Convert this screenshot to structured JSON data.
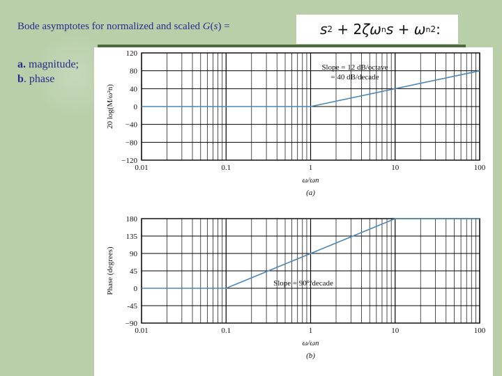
{
  "slide": {
    "title_prefix": "Bode asymptotes for normalized and scaled ",
    "title_fn": "G",
    "title_open": "(",
    "title_var": "s",
    "title_close": ") =",
    "formula": {
      "s": "s",
      "s_exp": "2",
      "plus1": "+ 2",
      "zeta": "ζ",
      "omega": "ω",
      "n_sub": "n",
      "s2": "s",
      "plus2": "+",
      "omega2": "ω",
      "n_sub2": "n",
      "exp2": "2",
      "colon": ":"
    },
    "legend_a": "a.",
    "legend_a_text": " magnitude;",
    "legend_b": "b",
    "legend_b_text": ". phase"
  },
  "colors": {
    "background": "#b9cfaa",
    "title_text": "#2a2a8c",
    "curve": "#4a86b8",
    "grid": "#000000"
  },
  "chart_data": [
    {
      "type": "line",
      "panel": "a",
      "xscale": "log",
      "xlim": [
        0.01,
        100
      ],
      "ylim": [
        -120,
        120
      ],
      "x_ticks": [
        0.01,
        0.1,
        1,
        10,
        100
      ],
      "x_tick_labels": [
        "0.01",
        "0.1",
        "1",
        "10",
        "100"
      ],
      "y_ticks": [
        120,
        80,
        40,
        0,
        -40,
        -80,
        -120
      ],
      "y_tick_labels": [
        "120",
        "80",
        "40",
        "0",
        "−40",
        "−80",
        "−120"
      ],
      "ylabel": "20 log(M/ω²n)",
      "xlabel": "ω/ωn",
      "caption": "(a)",
      "grid": true,
      "series": [
        {
          "x": [
            0.01,
            1,
            100
          ],
          "y": [
            0,
            0,
            80
          ]
        }
      ],
      "annotations": [
        "Slope = 12 dB/octave",
        "= 40 dB/decade"
      ]
    },
    {
      "type": "line",
      "panel": "b",
      "xscale": "log",
      "xlim": [
        0.01,
        100
      ],
      "ylim": [
        -90,
        180
      ],
      "x_ticks": [
        0.01,
        0.1,
        1,
        10,
        100
      ],
      "x_tick_labels": [
        "0.01",
        "0.1",
        "1",
        "10",
        "100"
      ],
      "y_ticks": [
        180,
        135,
        90,
        45,
        0,
        -45,
        -90
      ],
      "y_tick_labels": [
        "180",
        "135",
        "90",
        "45",
        "0",
        "-45",
        "−90"
      ],
      "ylabel": "Phase (degrees)",
      "xlabel": "ω/ωn",
      "caption": "(b)",
      "grid": true,
      "series": [
        {
          "x": [
            0.01,
            0.1,
            10,
            100
          ],
          "y": [
            0,
            0,
            180,
            180
          ]
        }
      ],
      "annotations": [
        "Slope = 90°/decade"
      ]
    }
  ]
}
